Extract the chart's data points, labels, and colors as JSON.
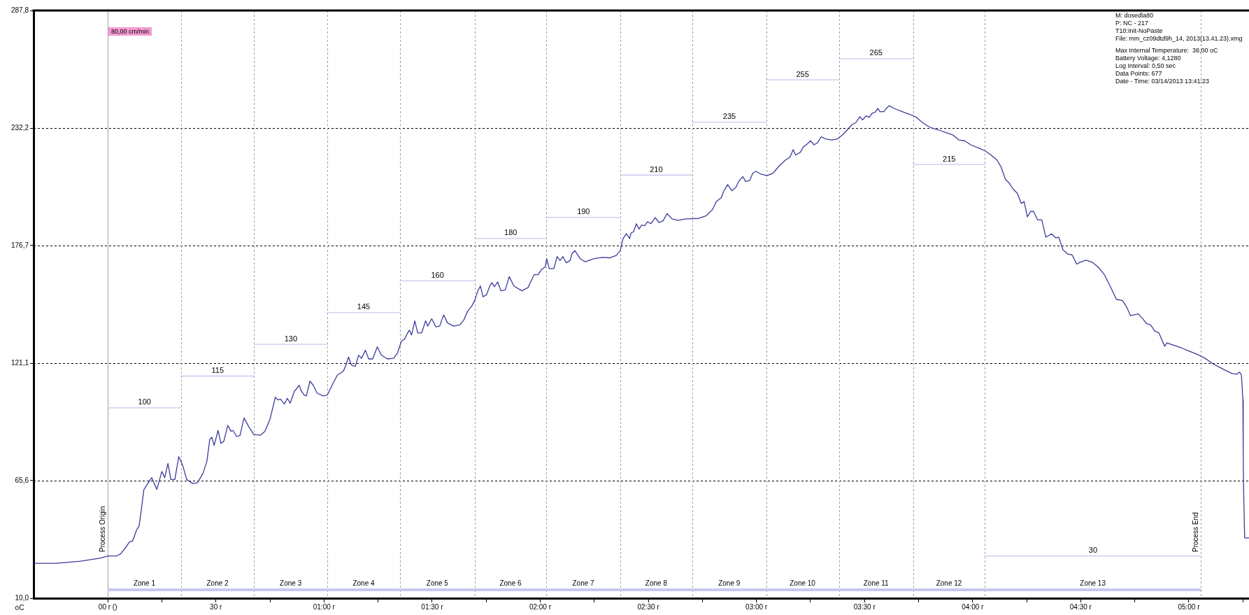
{
  "chart_data": {
    "type": "line",
    "ylabel": "oC",
    "annotations": [
      "80,00 cm/min",
      "M: dosedla80",
      "P: NC - 217",
      "T10:Init-NoPaste",
      "File: mm_cz09dtd9h_14, 2013(13.41.23).xmg",
      "Max Internal Temperature:  38,00 oC",
      "Battery Voltage: 4,1280",
      "Log Interval: 0,50 sec",
      "Data Points: 677",
      "Date - Time: 03/14/2013 13:41:23",
      "Zone 1",
      "Zone 2",
      "Zone 3",
      "Zone 4",
      "Zone 5",
      "Zone 6",
      "Zone 7",
      "Zone 8",
      "Zone 9",
      "Zone 10",
      "Zone 11",
      "Zone 12",
      "Zone 13"
    ],
    "xlim": [
      -20.6,
      316.7
    ],
    "ylim": [
      10.0,
      287.8
    ],
    "xticks": [
      {
        "value": 0,
        "label": "00 r ()"
      },
      {
        "value": 15,
        "label": null
      },
      {
        "value": 30,
        "label": "30 r"
      },
      {
        "value": 45,
        "label": null
      },
      {
        "value": 60,
        "label": "01:00 r"
      },
      {
        "value": 75,
        "label": null
      },
      {
        "value": 90,
        "label": "01:30 r"
      },
      {
        "value": 105,
        "label": null
      },
      {
        "value": 120,
        "label": "02:00 r"
      },
      {
        "value": 135,
        "label": null
      },
      {
        "value": 150,
        "label": "02:30 r"
      },
      {
        "value": 165,
        "label": null
      },
      {
        "value": 180,
        "label": "03:00 r"
      },
      {
        "value": 195,
        "label": null
      },
      {
        "value": 210,
        "label": "03:30 r"
      },
      {
        "value": 225,
        "label": null
      },
      {
        "value": 240,
        "label": "04:00 r"
      },
      {
        "value": 255,
        "label": null
      },
      {
        "value": 270,
        "label": "04:30 r"
      },
      {
        "value": 285,
        "label": null
      },
      {
        "value": 300,
        "label": "05:00 r"
      },
      {
        "value": 315,
        "label": null
      }
    ],
    "yticks": [
      {
        "value": 10.0,
        "label": "10,0"
      },
      {
        "value": 65.6,
        "label": "65,6"
      },
      {
        "value": 121.1,
        "label": "121,1"
      },
      {
        "value": 176.7,
        "label": "176,7"
      },
      {
        "value": 232.2,
        "label": "232,2"
      },
      {
        "value": 287.8,
        "label": "287,8"
      }
    ],
    "grid": "y",
    "ref_lines": [
      {
        "axis": "x",
        "value": 0,
        "label": "Process Origin",
        "color": "#a0a0a0",
        "line_style": "solid"
      },
      {
        "axis": "x",
        "value": 20.3,
        "color": "#a0a0a0",
        "line_style": "dashed"
      },
      {
        "axis": "x",
        "value": 40.6,
        "color": "#a0a0a0",
        "line_style": "dashed"
      },
      {
        "axis": "x",
        "value": 60.9,
        "color": "#a0a0a0",
        "line_style": "dashed"
      },
      {
        "axis": "x",
        "value": 81.1,
        "color": "#a0a0a0",
        "line_style": "dashed"
      },
      {
        "axis": "x",
        "value": 101.8,
        "color": "#a0a0a0",
        "line_style": "dashed"
      },
      {
        "axis": "x",
        "value": 121.7,
        "color": "#a0a0a0",
        "line_style": "dashed"
      },
      {
        "axis": "x",
        "value": 142.2,
        "color": "#a0a0a0",
        "line_style": "dashed"
      },
      {
        "axis": "x",
        "value": 162.2,
        "color": "#a0a0a0",
        "line_style": "dashed"
      },
      {
        "axis": "x",
        "value": 182.7,
        "color": "#a0a0a0",
        "line_style": "dashed"
      },
      {
        "axis": "x",
        "value": 202.9,
        "color": "#a0a0a0",
        "line_style": "dashed"
      },
      {
        "axis": "x",
        "value": 223.5,
        "color": "#a0a0a0",
        "line_style": "dashed"
      },
      {
        "axis": "x",
        "value": 243.4,
        "color": "#a0a0a0",
        "line_style": "dashed"
      },
      {
        "axis": "x",
        "value": 303.3,
        "label": "Process End",
        "color": "#a0a0a0",
        "line_style": "dashed"
      }
    ],
    "series": [
      {
        "color": "#3c3c9c",
        "x": [
          -20.4,
          -14.4,
          -7.6,
          -2.0,
          0,
          2.4,
          3.5,
          4.9,
          6.0,
          6.9,
          8.0,
          8.7,
          9.3,
          10.0,
          12.2,
          13.6,
          15.0,
          15.8,
          16.7,
          17.5,
          18.6,
          19.7,
          20.8,
          21.9,
          23.6,
          24.9,
          26.4,
          27.5,
          28.3,
          28.9,
          29.5,
          30.6,
          31.4,
          32.2,
          33.3,
          34.2,
          34.7,
          35.8,
          36.7,
          37.8,
          39.2,
          40.5,
          42.3,
          43.6,
          45.0,
          46.5,
          47.2,
          47.9,
          49.0,
          49.8,
          50.6,
          51.2,
          51.8,
          52.3,
          53.1,
          53.7,
          54.5,
          55.1,
          56.1,
          57.0,
          58.1,
          59.8,
          60.9,
          62.0,
          63.7,
          64.6,
          65.4,
          66.1,
          66.8,
          67.6,
          68.7,
          69.6,
          70.4,
          71.5,
          72.4,
          73.5,
          74.8,
          75.9,
          77.6,
          79.3,
          80.4,
          81.5,
          82.4,
          83.2,
          83.7,
          84.3,
          85.2,
          86.0,
          87.1,
          88.2,
          88.8,
          89.9,
          91.0,
          92.1,
          93.2,
          94.3,
          96.0,
          97.7,
          98.8,
          99.9,
          101.0,
          101.8,
          102.7,
          103.4,
          104.1,
          105.1,
          106.0,
          106.6,
          107.3,
          108.2,
          109.1,
          110.3,
          111.4,
          112.7,
          114.9,
          116.6,
          118.3,
          119.4,
          120.3,
          121.4,
          121.8,
          122.5,
          123.8,
          124.7,
          125.5,
          126.3,
          127.2,
          128.3,
          128.8,
          129.6,
          131.1,
          132.5,
          135.0,
          137.2,
          139.4,
          141.1,
          142.2,
          143.0,
          143.9,
          144.8,
          145.2,
          145.9,
          146.7,
          147.4,
          148.2,
          149.0,
          149.8,
          150.7,
          151.9,
          153.0,
          154.1,
          155.2,
          156.6,
          158.2,
          160.5,
          163.9,
          166.1,
          167.8,
          168.9,
          170.3,
          170.9,
          172.0,
          173.2,
          174.3,
          175.1,
          176.2,
          177.0,
          178.1,
          179.0,
          179.9,
          181.2,
          182.9,
          184.6,
          186.3,
          188.0,
          189.3,
          190.2,
          190.9,
          192.2,
          193.0,
          194.1,
          195.0,
          196.0,
          196.9,
          198.0,
          199.2,
          200.9,
          202.5,
          203.9,
          205.3,
          206.5,
          207.6,
          208.7,
          209.5,
          210.4,
          211.3,
          212.1,
          212.9,
          213.7,
          214.3,
          215.4,
          216.0,
          216.9,
          218.2,
          220.5,
          222.7,
          224.4,
          226.1,
          227.8,
          229.4,
          231.1,
          232.8,
          234.5,
          236.2,
          237.8,
          239.5,
          241.8,
          243.5,
          245.1,
          246.8,
          247.9,
          249.1,
          250.2,
          251.3,
          252.4,
          253.5,
          254.3,
          255.2,
          256.1,
          256.9,
          258.0,
          259.2,
          260.3,
          261.0,
          261.9,
          263.1,
          263.9,
          265.1,
          266.4,
          267.6,
          268.9,
          269.8,
          271.5,
          273.2,
          274.8,
          276.5,
          277.9,
          279.0,
          279.9,
          281.6,
          282.7,
          283.8,
          284.9,
          286.0,
          287.2,
          288.3,
          289.4,
          290.5,
          291.7,
          292.4,
          293.3,
          293.9,
          295.6,
          297.8,
          300.1,
          302.3,
          304.5,
          306.8,
          308.5,
          310.2,
          311.9,
          313.3,
          314.1,
          314.6,
          315.0,
          315.1,
          315.2,
          315.5,
          316.7
        ],
        "values": [
          26.5,
          26.5,
          27.5,
          29.0,
          30.0,
          30.0,
          30.9,
          33.8,
          36.6,
          37.1,
          42.3,
          44.2,
          51.8,
          61.3,
          67.0,
          61.4,
          69.9,
          67.0,
          73.7,
          66.1,
          66.1,
          76.9,
          72.7,
          66.1,
          64.2,
          64.6,
          69.0,
          74.7,
          85.1,
          86.1,
          82.2,
          89.3,
          83.2,
          84.2,
          91.7,
          88.9,
          89.3,
          86.4,
          87.0,
          95.2,
          90.8,
          87.4,
          87.0,
          88.9,
          94.6,
          105.0,
          103.7,
          104.1,
          101.8,
          104.5,
          102.2,
          105.0,
          107.9,
          108.8,
          110.7,
          107.9,
          106.0,
          105.6,
          112.6,
          110.7,
          106.9,
          105.6,
          106.0,
          109.8,
          115.5,
          116.4,
          117.4,
          120.2,
          124.0,
          120.2,
          119.6,
          124.9,
          123.4,
          127.2,
          123.1,
          123.1,
          128.8,
          124.9,
          123.1,
          123.4,
          125.9,
          131.6,
          132.5,
          135.4,
          136.7,
          134.4,
          141.1,
          135.4,
          135.4,
          141.1,
          138.6,
          142.1,
          138.3,
          138.6,
          143.9,
          140.1,
          138.6,
          139.2,
          141.5,
          145.8,
          148.1,
          150.6,
          155.3,
          157.6,
          152.5,
          153.4,
          157.6,
          159.1,
          157.2,
          159.5,
          155.3,
          155.7,
          162.0,
          157.6,
          155.3,
          156.8,
          162.9,
          162.9,
          165.2,
          166.7,
          170.5,
          165.8,
          165.8,
          171.5,
          169.6,
          171.5,
          168.6,
          169.6,
          172.8,
          174.3,
          170.5,
          169.0,
          170.5,
          171.1,
          170.9,
          172.0,
          174.3,
          180.0,
          182.3,
          180.0,
          182.6,
          183.2,
          187.0,
          184.5,
          186.4,
          186.1,
          188.0,
          187.0,
          189.9,
          187.6,
          188.4,
          191.8,
          189.3,
          188.6,
          189.3,
          189.5,
          190.8,
          193.7,
          197.5,
          199.4,
          202.3,
          205.5,
          202.6,
          204.2,
          207.0,
          209.3,
          207.0,
          207.4,
          210.9,
          211.8,
          210.5,
          209.7,
          210.9,
          214.3,
          217.0,
          218.5,
          222.0,
          219.5,
          220.8,
          223.3,
          224.7,
          226.2,
          224.3,
          225.2,
          228.1,
          227.1,
          226.6,
          227.1,
          229.0,
          231.5,
          233.8,
          234.8,
          237.6,
          236.1,
          238.0,
          237.3,
          239.2,
          239.6,
          241.5,
          240.0,
          240.0,
          241.5,
          242.8,
          241.5,
          240.0,
          238.6,
          237.3,
          234.8,
          232.9,
          231.9,
          231.0,
          230.0,
          229.0,
          226.6,
          226.2,
          224.3,
          222.7,
          221.4,
          219.5,
          217.0,
          213.8,
          208.0,
          206.1,
          203.3,
          201.4,
          196.6,
          197.5,
          190.3,
          192.8,
          192.8,
          188.9,
          188.9,
          180.7,
          181.3,
          182.2,
          180.3,
          180.7,
          174.6,
          172.7,
          172.3,
          167.9,
          168.8,
          169.8,
          168.8,
          166.6,
          163.1,
          158.4,
          154.5,
          151.3,
          150.7,
          147.8,
          143.6,
          144.0,
          144.4,
          142.1,
          139.8,
          139.2,
          136.4,
          135.4,
          132.6,
          129.1,
          130.7,
          129.7,
          128.4,
          126.8,
          125.3,
          123.4,
          120.7,
          119.2,
          117.7,
          116.3,
          115.9,
          116.9,
          115.4,
          103.9,
          77.1,
          61.3,
          38.5,
          38.5
        ]
      },
      {
        "color": "#c8c8ee",
        "x": [
          0,
          10.2,
          20.3
        ],
        "values": [
          100,
          100,
          100
        ],
        "value_labels": [
          null,
          "100",
          null
        ]
      },
      {
        "color": "#c8c8ee",
        "x": [
          20.3,
          30.5,
          40.6
        ],
        "values": [
          115,
          115,
          115
        ],
        "value_labels": [
          null,
          "115",
          null
        ]
      },
      {
        "color": "#c8c8ee",
        "x": [
          40.6,
          50.8,
          60.9
        ],
        "values": [
          130,
          130,
          130
        ],
        "value_labels": [
          null,
          "130",
          null
        ]
      },
      {
        "color": "#c8c8ee",
        "x": [
          60.9,
          71.0,
          81.1
        ],
        "values": [
          145,
          145,
          145
        ],
        "value_labels": [
          null,
          "145",
          null
        ]
      },
      {
        "color": "#c8c8ee",
        "x": [
          81.1,
          91.5,
          101.8
        ],
        "values": [
          160,
          160,
          160
        ],
        "value_labels": [
          null,
          "160",
          null
        ]
      },
      {
        "color": "#c8c8ee",
        "x": [
          101.8,
          111.8,
          121.7
        ],
        "values": [
          180,
          180,
          180
        ],
        "value_labels": [
          null,
          "180",
          null
        ]
      },
      {
        "color": "#c8c8ee",
        "x": [
          121.7,
          132.0,
          142.2
        ],
        "values": [
          190,
          190,
          190
        ],
        "value_labels": [
          null,
          "190",
          null
        ]
      },
      {
        "color": "#c8c8ee",
        "x": [
          142.2,
          152.2,
          162.2
        ],
        "values": [
          210,
          210,
          210
        ],
        "value_labels": [
          null,
          "210",
          null
        ]
      },
      {
        "color": "#c8c8ee",
        "x": [
          162.2,
          172.5,
          182.7
        ],
        "values": [
          235,
          235,
          235
        ],
        "value_labels": [
          null,
          "235",
          null
        ]
      },
      {
        "color": "#c8c8ee",
        "x": [
          182.7,
          192.8,
          202.9
        ],
        "values": [
          255,
          255,
          255
        ],
        "value_labels": [
          null,
          "255",
          null
        ]
      },
      {
        "color": "#c8c8ee",
        "x": [
          202.9,
          213.2,
          223.5
        ],
        "values": [
          265,
          265,
          265
        ],
        "value_labels": [
          null,
          "265",
          null
        ]
      },
      {
        "color": "#c8c8ee",
        "x": [
          223.5,
          233.5,
          243.4
        ],
        "values": [
          215,
          215,
          215
        ],
        "value_labels": [
          null,
          "215",
          null
        ]
      },
      {
        "color": "#c8c8ee",
        "x": [
          243.4,
          273.4,
          303.3
        ],
        "values": [
          30,
          30,
          30
        ],
        "value_labels": [
          null,
          "30",
          null
        ]
      }
    ]
  }
}
